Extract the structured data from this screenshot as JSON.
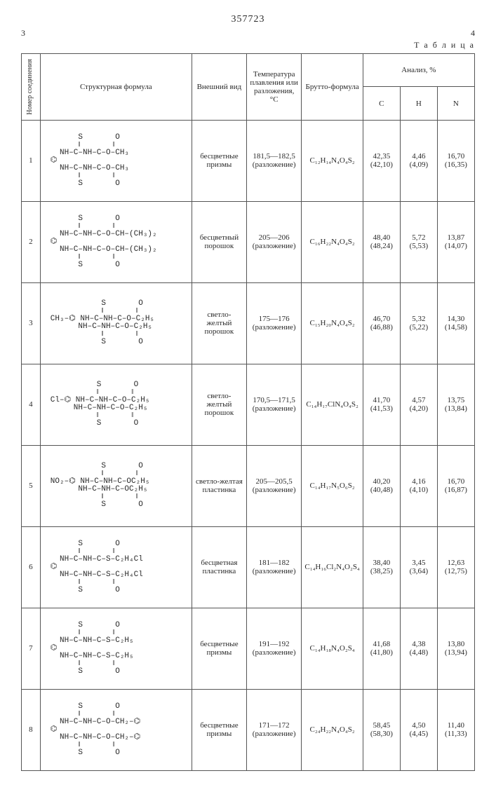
{
  "doc_number": "357723",
  "page_left": "3",
  "page_right": "4",
  "table_label": "Т а б л и ц а",
  "headers": {
    "num": "Номер соединения",
    "struct": "Структурная формула",
    "appearance": "Внешний вид",
    "mp": "Температура плавления или разложения, °C",
    "brutto": "Брутто-формула",
    "analysis": "Анализ, %",
    "C": "C",
    "H": "H",
    "N": "N"
  },
  "rows": [
    {
      "n": "1",
      "struct": "      S       O\n      ‖       ‖\n  NH–C–NH–C–O–CH₃\n⌬\n  NH–C–NH–C–O–CH₃\n      ‖       ‖\n      S       O",
      "app": "бесцветные призмы",
      "mp": "181,5—182,5 (разложение)",
      "formula": "C₁₂H₁₄N₄O₄S₂",
      "C": "42,35\n(42,10)",
      "H": "4,46\n(4,09)",
      "N": "16,70\n(16,35)"
    },
    {
      "n": "2",
      "struct": "      S       O\n      ‖       ‖\n  NH–C–NH–C–O–CH–(CH₃)₂\n⌬\n  NH–C–NH–C–O–CH–(CH₃)₂\n      ‖       ‖\n      S       O",
      "app": "бесцветный порошок",
      "mp": "205—206 (разложение)",
      "formula": "C₁₆H₂₂N₄O₄S₂",
      "C": "48,40\n(48,24)",
      "H": "5,72\n(5,53)",
      "N": "13,87\n(14,07)"
    },
    {
      "n": "3",
      "struct": "           S       O\n           ‖       ‖\nCH₃–⌬ NH–C–NH–C–O–C₂H₅\n      NH–C–NH–C–O–C₂H₅\n           ‖       ‖\n           S       O",
      "app": "светло-желтый порошок",
      "mp": "175—176 (разложение)",
      "formula": "C₁₅H₂₀N₄O₄S₂",
      "C": "46,70\n(46,88)",
      "H": "5,32\n(5,22)",
      "N": "14,30\n(14,58)"
    },
    {
      "n": "4",
      "struct": "          S       O\n          ‖       ‖\nCl–⌬ NH–C–NH–C–O–C₂H₅\n     NH–C–NH–C–O–C₂H₅\n          ‖       ‖\n          S       O",
      "app": "светло-желтый порошок",
      "mp": "170,5—171,5 (разложение)",
      "formula": "C₁₄H₁₇ClN₄O₄S₂",
      "C": "41,70\n(41,53)",
      "H": "4,57\n(4,20)",
      "N": "13,75\n(13,84)"
    },
    {
      "n": "5",
      "struct": "           S       O\n           ‖       ‖\nNO₂–⌬ NH–C–NH–C–OC₂H₅\n      NH–C–NH–C–OC₂H₅\n           ‖       ‖\n           S       O",
      "app": "светло-желтая пластинка",
      "mp": "205—205,5 (разложение)",
      "formula": "C₁₄H₁₇N₅O₆S₂",
      "C": "40,20\n(40,48)",
      "H": "4,16\n(4,10)",
      "N": "16,70\n(16,87)"
    },
    {
      "n": "6",
      "struct": "      S       O\n      ‖       ‖\n  NH–C–NH–C–S–C₂H₄Cl\n⌬\n  NH–C–NH–C–S–C₂H₄Cl\n      ‖       ‖\n      S       O",
      "app": "бесцветная пластинка",
      "mp": "181—182 (разложение)",
      "formula": "C₁₄H₁₆Cl₂N₄O₂S₄",
      "C": "38,40\n(38,25)",
      "H": "3,45\n(3,64)",
      "N": "12,63\n(12,75)"
    },
    {
      "n": "7",
      "struct": "      S       O\n      ‖       ‖\n  NH–C–NH–C–S–C₂H₅\n⌬\n  NH–C–NH–C–S–C₂H₅\n      ‖       ‖\n      S       O",
      "app": "бесцветные призмы",
      "mp": "191—192 (разложение)",
      "formula": "C₁₄H₁₈N₄O₂S₄",
      "C": "41,68\n(41,80)",
      "H": "4,38\n(4,48)",
      "N": "13,80\n(13,94)"
    },
    {
      "n": "8",
      "struct": "      S       O\n      ‖       ‖\n  NH–C–NH–C–O–CH₂–⌬\n⌬\n  NH–C–NH–C–O–CH₂–⌬\n      ‖       ‖\n      S       O",
      "app": "бесцветные призмы",
      "mp": "171—172 (разложение)",
      "formula": "C₂₄H₂₂N₄O₄S₂",
      "C": "58,45\n(58,30)",
      "H": "4,50\n(4,45)",
      "N": "11,40\n(11,33)"
    }
  ]
}
